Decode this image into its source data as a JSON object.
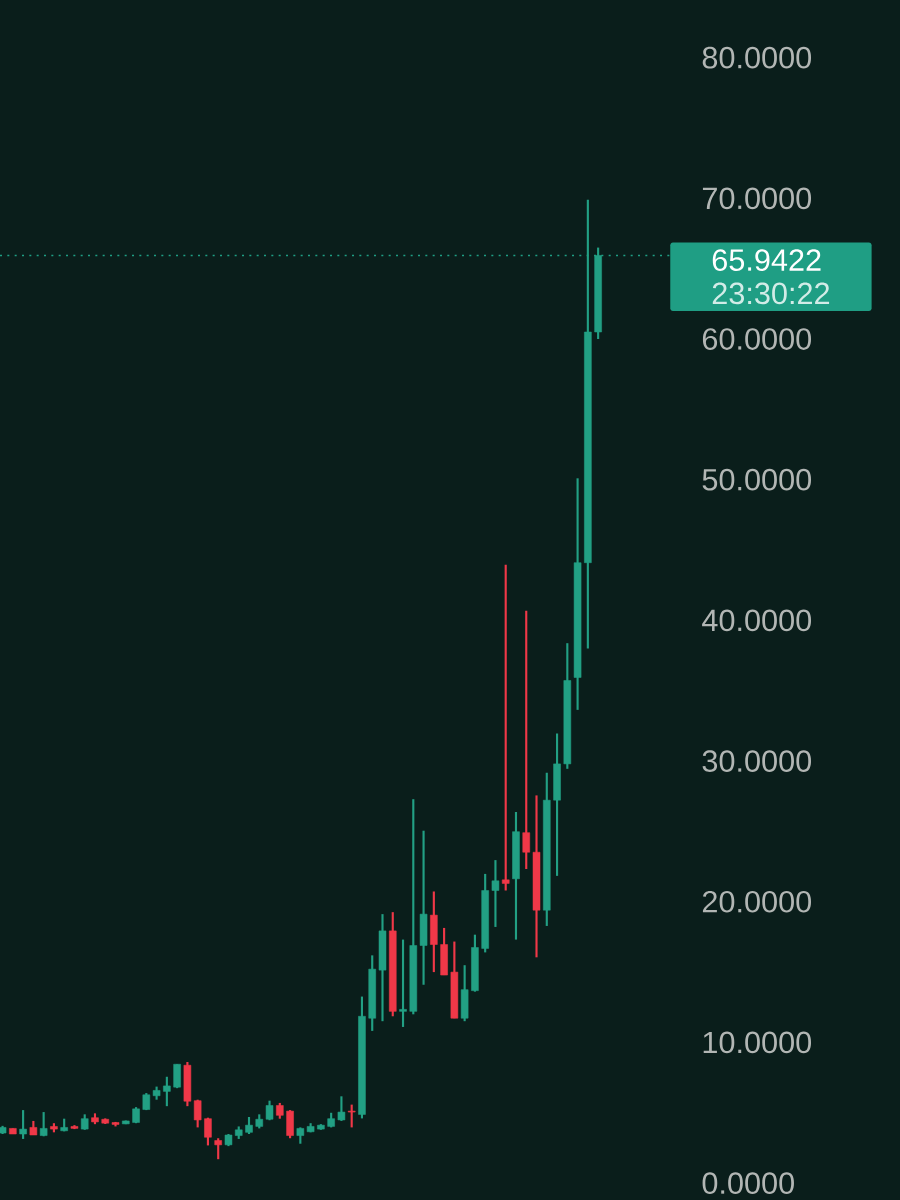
{
  "chart_data": {
    "type": "candlestick",
    "categories": [
      null,
      null,
      null,
      null,
      null,
      null,
      null,
      null,
      null,
      null,
      null,
      null,
      null,
      null,
      null,
      null,
      null,
      null,
      null,
      null,
      null,
      null,
      null,
      null,
      null,
      null,
      null,
      null,
      null,
      null,
      null,
      null,
      null,
      null,
      null,
      null,
      null,
      null,
      null,
      null,
      null,
      null,
      null,
      null,
      null,
      null,
      null,
      null,
      null,
      null,
      null,
      null,
      null,
      null,
      null,
      null,
      null,
      null,
      null
    ],
    "ohlc": [
      [
        3.56,
        4.07,
        3.49,
        3.96
      ],
      [
        3.89,
        3.89,
        3.49,
        3.49
      ],
      [
        3.49,
        5.19,
        3.14,
        3.84
      ],
      [
        3.96,
        4.42,
        3.42,
        3.42
      ],
      [
        3.38,
        5.05,
        3.33,
        3.89
      ],
      [
        4.03,
        4.26,
        3.61,
        3.84
      ],
      [
        3.72,
        4.58,
        3.68,
        3.96
      ],
      [
        4.03,
        4.12,
        3.84,
        3.89
      ],
      [
        3.84,
        4.89,
        3.79,
        4.58
      ],
      [
        4.65,
        4.96,
        4.19,
        4.35
      ],
      [
        4.54,
        4.6,
        4.2,
        4.26
      ],
      [
        4.31,
        4.35,
        4.03,
        4.17
      ],
      [
        4.21,
        4.45,
        4.19,
        4.42
      ],
      [
        4.31,
        5.4,
        4.26,
        5.28
      ],
      [
        5.23,
        6.4,
        5.19,
        6.28
      ],
      [
        6.21,
        6.86,
        5.93,
        6.59
      ],
      [
        6.52,
        7.56,
        5.47,
        6.91
      ],
      [
        6.82,
        8.45,
        6.75,
        8.45
      ],
      [
        8.38,
        8.61,
        5.47,
        5.82
      ],
      [
        5.86,
        5.93,
        3.96,
        4.49
      ],
      [
        4.58,
        4.65,
        2.68,
        3.26
      ],
      [
        3.03,
        3.19,
        1.7,
        2.72
      ],
      [
        2.72,
        3.49,
        2.63,
        3.42
      ],
      [
        3.38,
        4.03,
        3.14,
        3.79
      ],
      [
        3.61,
        4.7,
        3.49,
        4.12
      ],
      [
        4.03,
        4.89,
        3.89,
        4.54
      ],
      [
        4.54,
        5.86,
        4.47,
        5.52
      ],
      [
        5.52,
        5.7,
        4.58,
        4.82
      ],
      [
        5.12,
        5.19,
        3.19,
        3.38
      ],
      [
        3.38,
        3.96,
        2.8,
        3.89
      ],
      [
        3.65,
        4.26,
        3.61,
        4.03
      ],
      [
        3.84,
        4.19,
        3.79,
        4.12
      ],
      [
        4.03,
        5.0,
        3.96,
        4.58
      ],
      [
        4.49,
        6.17,
        4.42,
        5.05
      ],
      [
        5.12,
        5.58,
        3.96,
        5.05
      ],
      [
        4.88,
        13.26,
        4.6,
        11.86
      ],
      [
        11.72,
        16.19,
        10.82,
        15.21
      ],
      [
        15.14,
        19.12,
        11.51,
        17.93
      ],
      [
        17.93,
        19.26,
        11.86,
        12.21
      ],
      [
        12.21,
        17.31,
        11.1,
        12.35
      ],
      [
        12.21,
        27.29,
        12.0,
        16.89
      ],
      [
        16.89,
        25.05,
        14.1,
        19.12
      ],
      [
        19.05,
        20.73,
        15.0,
        16.96
      ],
      [
        16.96,
        18.14,
        14.79,
        14.79
      ],
      [
        15.0,
        17.17,
        11.72,
        11.72
      ],
      [
        11.72,
        15.49,
        11.51,
        13.75
      ],
      [
        13.68,
        17.66,
        13.61,
        16.75
      ],
      [
        16.68,
        21.98,
        16.4,
        20.8
      ],
      [
        20.8,
        22.96,
        18.21,
        21.49
      ],
      [
        21.56,
        43.96,
        20.8,
        21.3
      ],
      [
        21.63,
        26.38,
        17.31,
        24.98
      ],
      [
        24.91,
        40.68,
        22.33,
        23.52
      ],
      [
        23.52,
        27.56,
        16.05,
        19.4
      ],
      [
        19.4,
        29.17,
        18.28,
        27.22
      ],
      [
        27.22,
        31.96,
        21.84,
        29.8
      ],
      [
        29.8,
        38.38,
        29.45,
        35.73
      ],
      [
        35.94,
        50.1,
        33.64,
        44.1
      ],
      [
        44.1,
        69.9,
        38.0,
        60.5
      ],
      [
        60.5,
        66.5,
        60.0,
        65.94
      ]
    ],
    "ylim": [
      -1.2,
      84.1
    ],
    "yticks": [
      {
        "value": 0,
        "label": "0.0000"
      },
      {
        "value": 10,
        "label": "10.0000"
      },
      {
        "value": 20,
        "label": "20.0000"
      },
      {
        "value": 30,
        "label": "30.0000"
      },
      {
        "value": 40,
        "label": "40.0000"
      },
      {
        "value": 50,
        "label": "50.0000"
      },
      {
        "value": 60,
        "label": "60.0000"
      },
      {
        "value": 70,
        "label": "70.0000"
      },
      {
        "value": 80,
        "label": "80.0000"
      }
    ],
    "tick_labels": "y",
    "ref_lines": [
      {
        "axis": "y",
        "value": 65.9422,
        "label": "65.9422",
        "color": "#1f9e84",
        "line_style": "dotted"
      }
    ],
    "annotations": [
      "23:30:22"
    ]
  }
}
